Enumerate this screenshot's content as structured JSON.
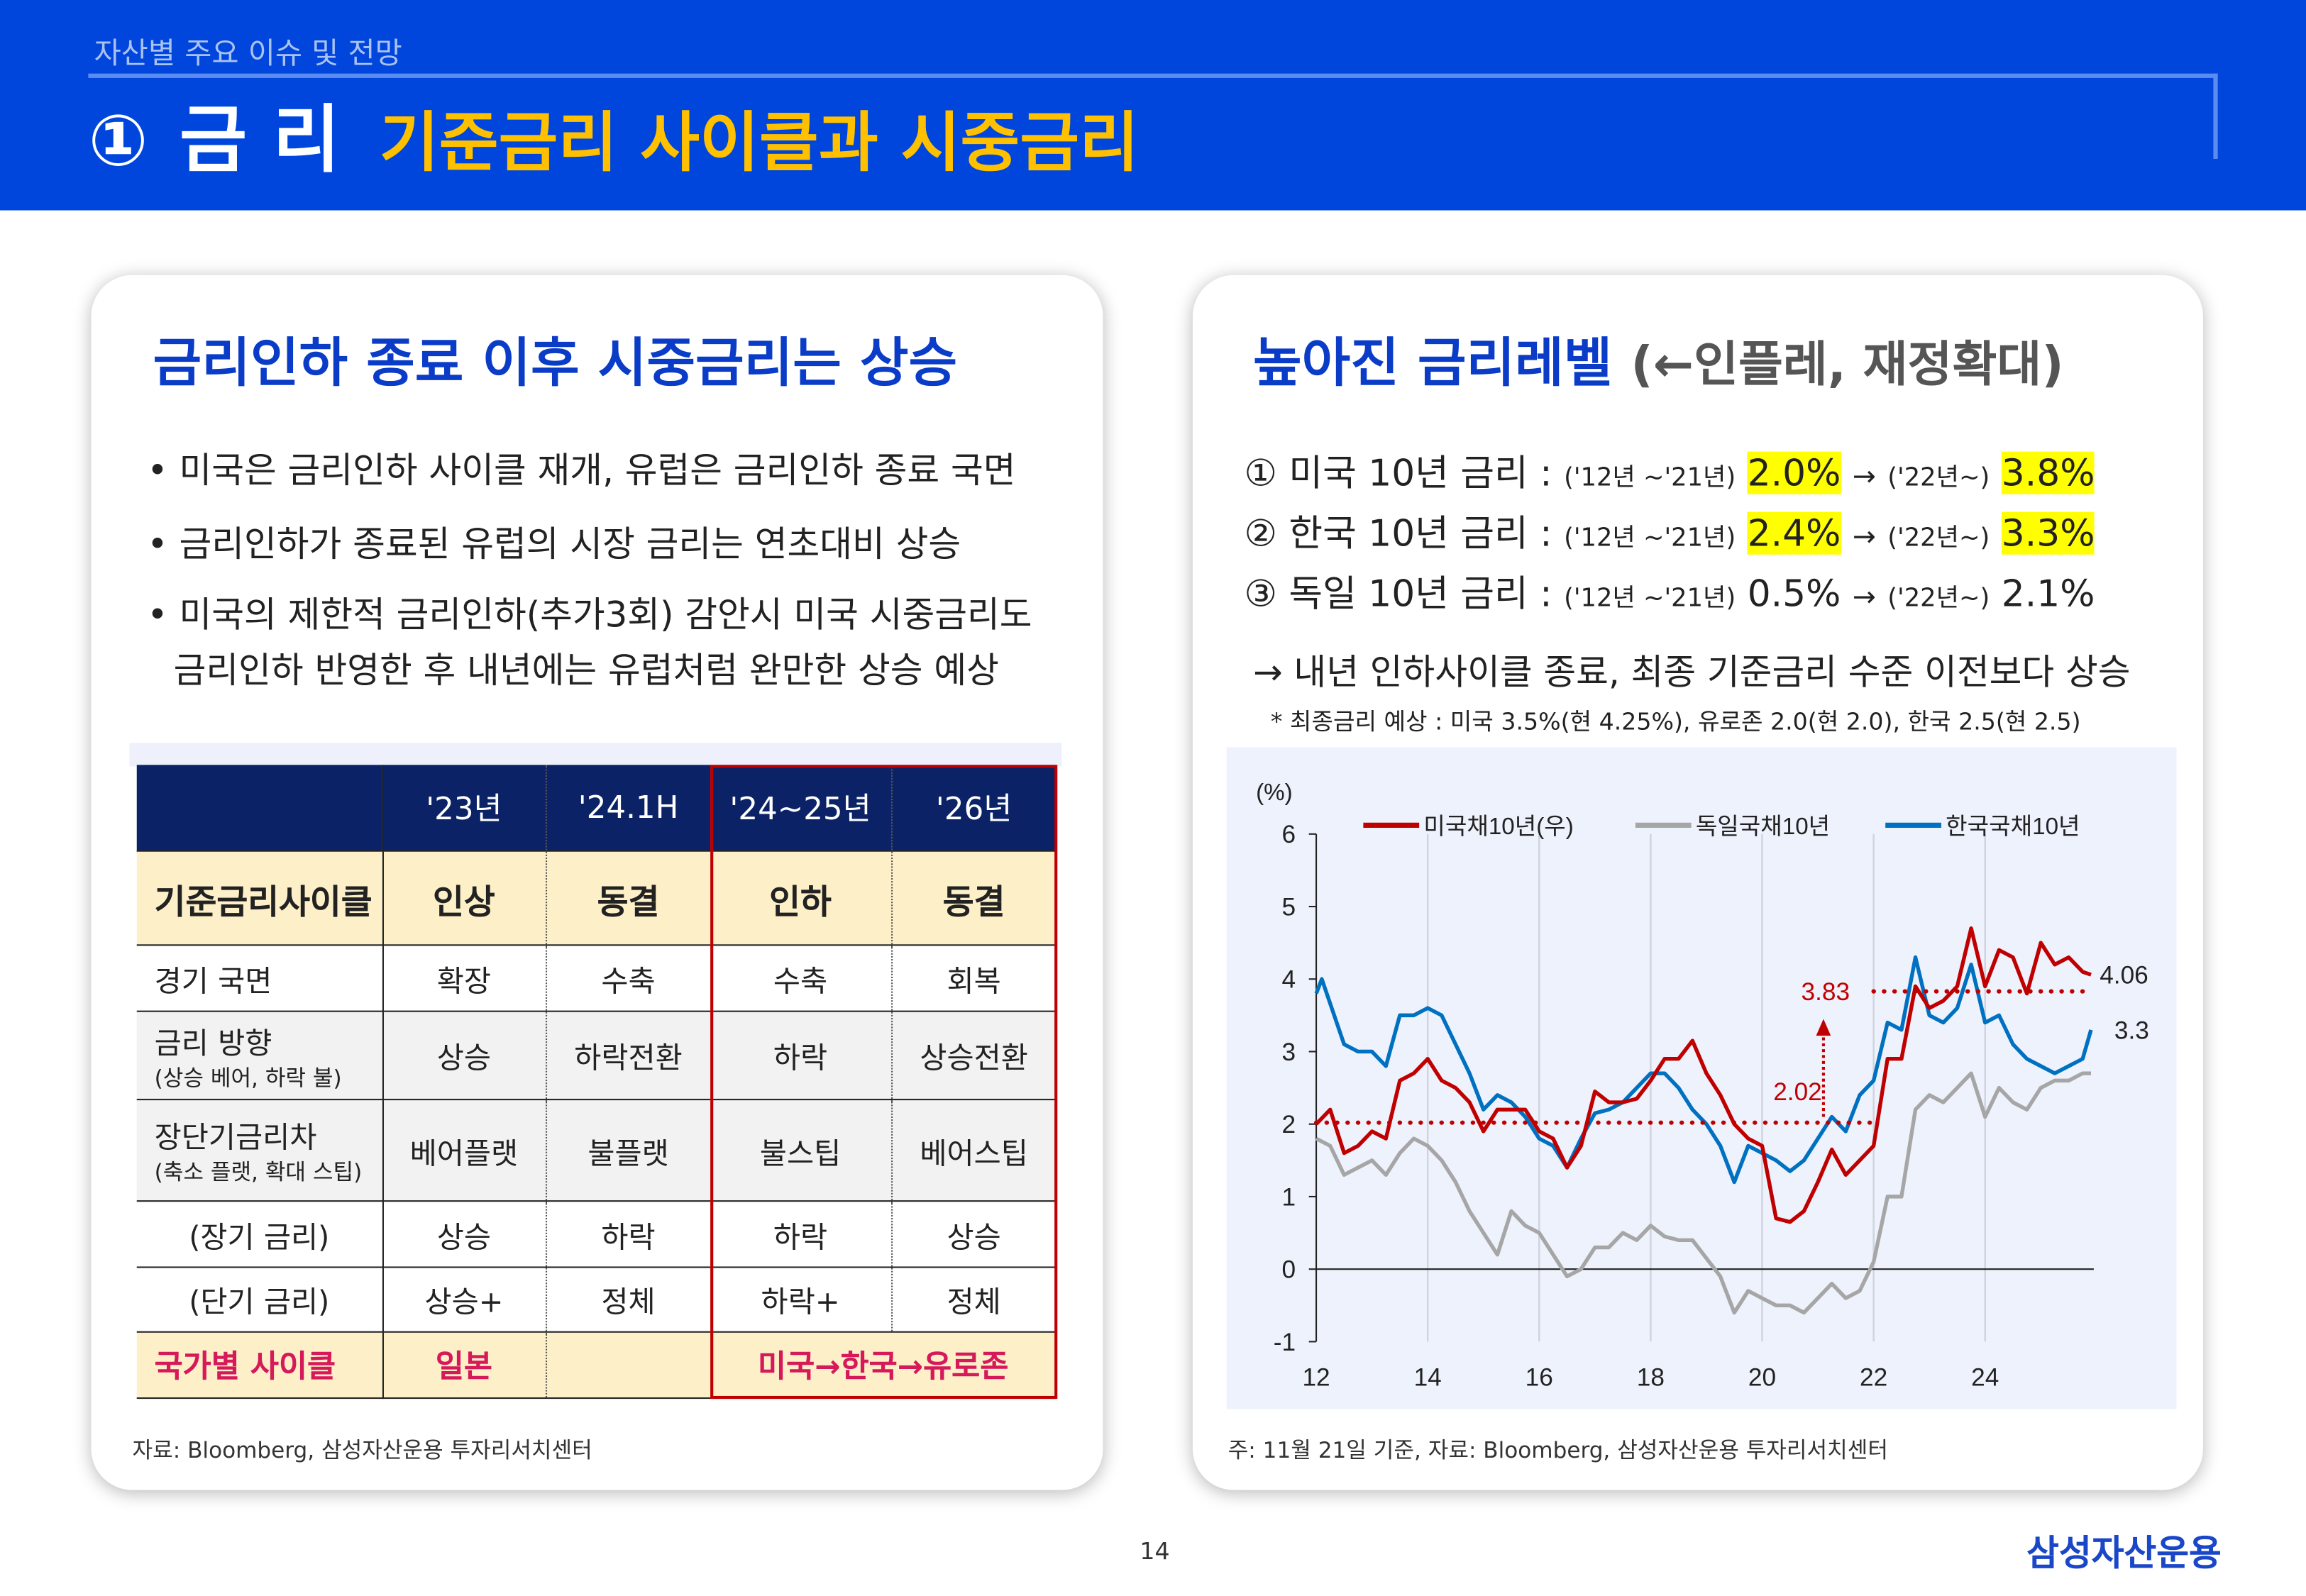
{
  "header": {
    "section": "자산별 주요 이슈 및 전망",
    "number": "①",
    "topic": "금 리",
    "headline": "기준금리 사이클과 시중금리"
  },
  "left": {
    "title": "금리인하 종료 이후 시중금리는 상승",
    "bullets": [
      "미국은 금리인하 사이클 재개, 유럽은 금리인하 종료 국면",
      "금리인하가 종료된 유럽의 시장 금리는 연초대비 상승",
      "미국의 제한적 금리인하(추가3회) 감안시 미국 시중금리도",
      "금리인하 반영한 후 내년에는 유럽처럼 완만한 상승 예상"
    ],
    "bullet_mark": "•",
    "table": {
      "columns": [
        "",
        "'23년",
        "'24.1H",
        "'24~25년",
        "'26년"
      ],
      "rows": [
        {
          "label": "기준금리사이클",
          "sub": "",
          "cells": [
            "인상",
            "동결",
            "인하",
            "동결"
          ]
        },
        {
          "label": "경기  국면",
          "sub": "",
          "cells": [
            "확장",
            "수축",
            "수축",
            "회복"
          ]
        },
        {
          "label": "금리  방향",
          "sub": "(상승 베어, 하락 불)",
          "cells": [
            "상승",
            "하락전환",
            "하락",
            "상승전환"
          ]
        },
        {
          "label": "장단기금리차",
          "sub": "(축소 플랫, 확대 스팁)",
          "cells": [
            "베어플랫",
            "불플랫",
            "불스팁",
            "베어스팁"
          ]
        },
        {
          "label": "(장기 금리)",
          "sub": "",
          "cells": [
            "상승",
            "하락",
            "하락",
            "상승"
          ]
        },
        {
          "label": "(단기 금리)",
          "sub": "",
          "cells": [
            "상승+",
            "정체",
            "하락+",
            "정체"
          ]
        }
      ],
      "country_row": {
        "label": "국가별 사이클",
        "c1": "일본",
        "c2": "",
        "c34": "미국→한국→유로존"
      },
      "highlight_color": "#c00000"
    },
    "source": "자료: Bloomberg, 삼성자산운용 투자리서치센터"
  },
  "right": {
    "title": "높아진 금리레벨",
    "title_paren": "(←인플레, 재정확대)",
    "rates": [
      {
        "label": "① 미국 10년 금리 :",
        "p1": "('12년 ~'21년)",
        "v1": "2.0%",
        "arrow": "→",
        "p2": "('22년~)",
        "v2": "3.8%",
        "highlight": true
      },
      {
        "label": "② 한국 10년 금리 :",
        "p1": "('12년 ~'21년)",
        "v1": "2.4%",
        "arrow": "→",
        "p2": "('22년~)",
        "v2": "3.3%",
        "highlight": true
      },
      {
        "label": "③ 독일 10년 금리 :",
        "p1": "('12년 ~'21년)",
        "v1": "0.5%",
        "arrow": "→",
        "p2": "('22년~)",
        "v2": "2.1%",
        "highlight": false
      }
    ],
    "conclusion": "→ 내년 인하사이클 종료, 최종 기준금리 수준 이전보다 상승",
    "footnote": "* 최종금리 예상 : 미국 3.5%(현 4.25%), 유로존 2.0(현 2.0), 한국 2.5(현 2.5)",
    "note": "주: 11월 21일 기준, 자료: Bloomberg, 삼성자산운용 투자리서치센터"
  },
  "chart_data": {
    "type": "line",
    "ylabel": "(%)",
    "ylim": [
      -1,
      6
    ],
    "yticks": [
      "6",
      "5",
      "4",
      "3",
      "2",
      "1",
      "0",
      "-1"
    ],
    "xlim": [
      12,
      26
    ],
    "xticks": [
      "12",
      "14",
      "16",
      "18",
      "20",
      "22",
      "24"
    ],
    "grid": "vertical",
    "legend": "top",
    "series": [
      {
        "name": "미국채10년(우)",
        "color": "#c00000",
        "x": [
          12,
          12.25,
          12.5,
          12.75,
          13,
          13.25,
          13.5,
          13.75,
          14,
          14.25,
          14.5,
          14.75,
          15,
          15.25,
          15.5,
          15.75,
          16,
          16.25,
          16.5,
          16.75,
          17,
          17.25,
          17.5,
          17.75,
          18,
          18.25,
          18.5,
          18.75,
          19,
          19.25,
          19.5,
          19.75,
          20,
          20.25,
          20.5,
          20.75,
          21,
          21.25,
          21.5,
          21.75,
          22,
          22.25,
          22.5,
          22.75,
          23,
          23.25,
          23.5,
          23.75,
          24,
          24.25,
          24.5,
          24.75,
          25,
          25.25,
          25.5,
          25.75,
          25.9
        ],
        "y": [
          2.0,
          2.2,
          1.6,
          1.7,
          1.9,
          1.8,
          2.6,
          2.7,
          2.9,
          2.6,
          2.5,
          2.3,
          1.9,
          2.2,
          2.2,
          2.2,
          1.9,
          1.8,
          1.4,
          1.7,
          2.45,
          2.3,
          2.3,
          2.35,
          2.6,
          2.9,
          2.9,
          3.15,
          2.7,
          2.4,
          2.0,
          1.8,
          1.7,
          0.7,
          0.65,
          0.8,
          1.2,
          1.65,
          1.3,
          1.5,
          1.7,
          2.9,
          2.9,
          3.9,
          3.6,
          3.7,
          3.9,
          4.7,
          3.9,
          4.4,
          4.3,
          3.8,
          4.5,
          4.2,
          4.3,
          4.1,
          4.06
        ]
      },
      {
        "name": "독일국채10년",
        "color": "#a6a6a6",
        "x": [
          12,
          12.25,
          12.5,
          12.75,
          13,
          13.25,
          13.5,
          13.75,
          14,
          14.25,
          14.5,
          14.75,
          15,
          15.25,
          15.5,
          15.75,
          16,
          16.25,
          16.5,
          16.75,
          17,
          17.25,
          17.5,
          17.75,
          18,
          18.25,
          18.5,
          18.75,
          19,
          19.25,
          19.5,
          19.75,
          20,
          20.25,
          20.5,
          20.75,
          21,
          21.25,
          21.5,
          21.75,
          22,
          22.25,
          22.5,
          22.75,
          23,
          23.25,
          23.5,
          23.75,
          24,
          24.25,
          24.5,
          24.75,
          25,
          25.25,
          25.5,
          25.75,
          25.9
        ],
        "y": [
          1.8,
          1.7,
          1.3,
          1.4,
          1.5,
          1.3,
          1.6,
          1.8,
          1.7,
          1.5,
          1.2,
          0.8,
          0.5,
          0.2,
          0.8,
          0.6,
          0.5,
          0.2,
          -0.1,
          0.0,
          0.3,
          0.3,
          0.5,
          0.4,
          0.6,
          0.45,
          0.4,
          0.4,
          0.15,
          -0.1,
          -0.6,
          -0.3,
          -0.4,
          -0.5,
          -0.5,
          -0.6,
          -0.4,
          -0.2,
          -0.4,
          -0.3,
          0.1,
          1.0,
          1.0,
          2.2,
          2.4,
          2.3,
          2.5,
          2.7,
          2.1,
          2.5,
          2.3,
          2.2,
          2.5,
          2.6,
          2.6,
          2.7,
          2.7
        ]
      },
      {
        "name": "한국국채10년",
        "color": "#0070c0",
        "x": [
          12,
          12.1,
          12.5,
          12.75,
          13,
          13.25,
          13.5,
          13.75,
          14,
          14.25,
          14.5,
          14.75,
          15,
          15.25,
          15.5,
          15.75,
          16,
          16.25,
          16.5,
          16.75,
          17,
          17.25,
          17.5,
          17.75,
          18,
          18.25,
          18.5,
          18.75,
          19,
          19.25,
          19.5,
          19.75,
          20,
          20.25,
          20.5,
          20.75,
          21,
          21.25,
          21.5,
          21.75,
          22,
          22.25,
          22.5,
          22.75,
          23,
          23.25,
          23.5,
          23.75,
          24,
          24.25,
          24.5,
          24.75,
          25,
          25.25,
          25.5,
          25.75,
          25.9
        ],
        "y": [
          3.8,
          4.0,
          3.1,
          3.0,
          3.0,
          2.8,
          3.5,
          3.5,
          3.6,
          3.5,
          3.1,
          2.7,
          2.2,
          2.4,
          2.3,
          2.1,
          1.8,
          1.7,
          1.4,
          1.8,
          2.15,
          2.2,
          2.3,
          2.5,
          2.7,
          2.7,
          2.5,
          2.2,
          2.0,
          1.7,
          1.2,
          1.7,
          1.6,
          1.5,
          1.35,
          1.5,
          1.8,
          2.1,
          1.9,
          2.4,
          2.6,
          3.4,
          3.3,
          4.3,
          3.5,
          3.4,
          3.6,
          4.2,
          3.4,
          3.5,
          3.1,
          2.9,
          2.8,
          2.7,
          2.8,
          2.9,
          3.3
        ]
      }
    ],
    "reference_lines": [
      {
        "label": "2.02",
        "value": 2.02,
        "from": 12,
        "to": 22
      },
      {
        "label": "3.83",
        "value": 3.83,
        "from": 22,
        "to": 25.9
      }
    ],
    "end_labels": [
      "4.06",
      "3.3"
    ],
    "annotation_color": "#c00000"
  },
  "footer": {
    "page": "14",
    "logo": "삼성자산운용"
  }
}
